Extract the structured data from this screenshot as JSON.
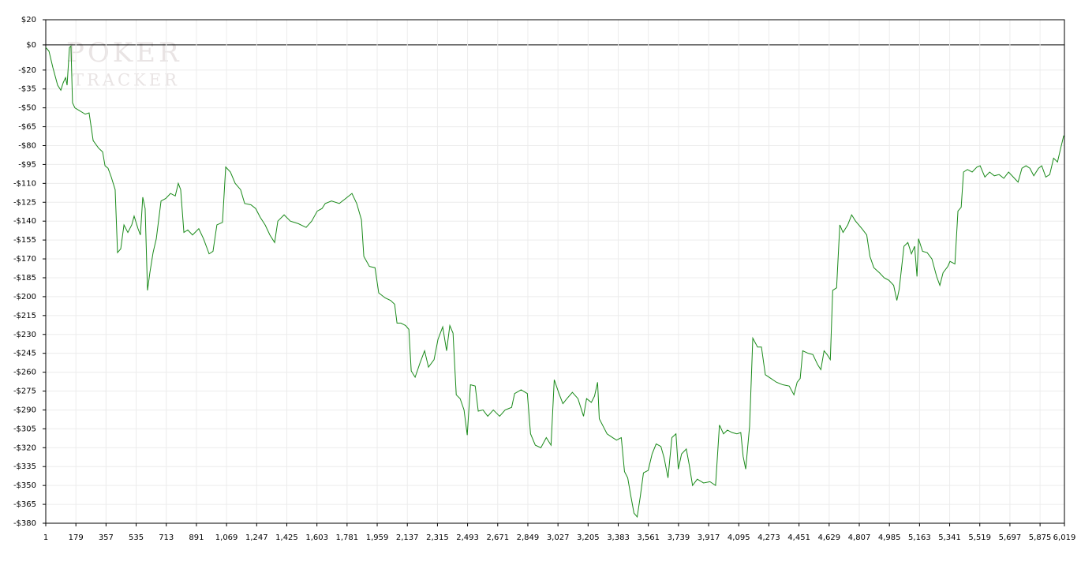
{
  "chart_data": {
    "type": "line",
    "watermark": [
      "POKER",
      "TRACKER"
    ],
    "color": "#1a8a1a",
    "grid": true,
    "xlim": [
      1,
      6019
    ],
    "ylim": [
      -380,
      20
    ],
    "xticks": [
      1,
      179,
      357,
      535,
      713,
      891,
      {
        "value": 1069,
        "label": "1,069"
      },
      {
        "value": 1247,
        "label": "1,247"
      },
      {
        "value": 1425,
        "label": "1,425"
      },
      {
        "value": 1603,
        "label": "1,603"
      },
      {
        "value": 1781,
        "label": "1,781"
      },
      {
        "value": 1959,
        "label": "1,959"
      },
      {
        "value": 2137,
        "label": "2,137"
      },
      {
        "value": 2315,
        "label": "2,315"
      },
      {
        "value": 2493,
        "label": "2,493"
      },
      {
        "value": 2671,
        "label": "2,671"
      },
      {
        "value": 2849,
        "label": "2,849"
      },
      {
        "value": 3027,
        "label": "3,027"
      },
      {
        "value": 3205,
        "label": "3,205"
      },
      {
        "value": 3383,
        "label": "3,383"
      },
      {
        "value": 3561,
        "label": "3,561"
      },
      {
        "value": 3739,
        "label": "3,739"
      },
      {
        "value": 3917,
        "label": "3,917"
      },
      {
        "value": 4095,
        "label": "4,095"
      },
      {
        "value": 4273,
        "label": "4,273"
      },
      {
        "value": 4451,
        "label": "4,451"
      },
      {
        "value": 4629,
        "label": "4,629"
      },
      {
        "value": 4807,
        "label": "4,807"
      },
      {
        "value": 4985,
        "label": "4,985"
      },
      {
        "value": 5163,
        "label": "5,163"
      },
      {
        "value": 5341,
        "label": "5,341"
      },
      {
        "value": 5519,
        "label": "5,519"
      },
      {
        "value": 5697,
        "label": "5,697"
      },
      {
        "value": 5875,
        "label": "5,875"
      },
      {
        "value": 6019,
        "label": "6,019"
      }
    ],
    "yticks": [
      {
        "value": 20,
        "label": "$20"
      },
      {
        "value": 0,
        "label": "$0"
      },
      {
        "value": -20,
        "label": "-$20"
      },
      {
        "value": -35,
        "label": "-$35"
      },
      {
        "value": -50,
        "label": "-$50"
      },
      {
        "value": -65,
        "label": "-$65"
      },
      {
        "value": -80,
        "label": "-$80"
      },
      {
        "value": -95,
        "label": "-$95"
      },
      {
        "value": -110,
        "label": "-$110"
      },
      {
        "value": -125,
        "label": "-$125"
      },
      {
        "value": -140,
        "label": "-$140"
      },
      {
        "value": -155,
        "label": "-$155"
      },
      {
        "value": -170,
        "label": "-$170"
      },
      {
        "value": -185,
        "label": "-$185"
      },
      {
        "value": -200,
        "label": "-$200"
      },
      {
        "value": -215,
        "label": "-$215"
      },
      {
        "value": -230,
        "label": "-$230"
      },
      {
        "value": -245,
        "label": "-$245"
      },
      {
        "value": -260,
        "label": "-$260"
      },
      {
        "value": -275,
        "label": "-$275"
      },
      {
        "value": -290,
        "label": "-$290"
      },
      {
        "value": -305,
        "label": "-$305"
      },
      {
        "value": -320,
        "label": "-$320"
      },
      {
        "value": -335,
        "label": "-$335"
      },
      {
        "value": -350,
        "label": "-$350"
      },
      {
        "value": -365,
        "label": "-$365"
      },
      {
        "value": -380,
        "label": "-$380"
      }
    ],
    "x": [
      1,
      20,
      43,
      71,
      90,
      104,
      118,
      127,
      141,
      150,
      159,
      173,
      197,
      234,
      257,
      281,
      313,
      337,
      351,
      369,
      388,
      411,
      425,
      444,
      463,
      486,
      509,
      523,
      546,
      560,
      574,
      588,
      602,
      616,
      635,
      654,
      682,
      710,
      738,
      766,
      784,
      798,
      817,
      840,
      868,
      905,
      933,
      966,
      989,
      1012,
      1045,
      1064,
      1092,
      1120,
      1152,
      1176,
      1213,
      1241,
      1268,
      1297,
      1325,
      1353,
      1372,
      1409,
      1446,
      1493,
      1539,
      1572,
      1605,
      1633,
      1652,
      1689,
      1735,
      1773,
      1810,
      1838,
      1866,
      1880,
      1913,
      1946,
      1968,
      2006,
      2038,
      2062,
      2076,
      2099,
      2127,
      2146,
      2160,
      2183,
      2211,
      2239,
      2262,
      2295,
      2318,
      2346,
      2369,
      2388,
      2407,
      2426,
      2449,
      2472,
      2491,
      2510,
      2538,
      2556,
      2584,
      2612,
      2645,
      2682,
      2715,
      2753,
      2771,
      2809,
      2846,
      2865,
      2893,
      2926,
      2958,
      2986,
      3005,
      3033,
      3056,
      3080,
      3112,
      3145,
      3178,
      3196,
      3224,
      3243,
      3261,
      3271,
      3294,
      3317,
      3350,
      3373,
      3401,
      3420,
      3439,
      3457,
      3476,
      3495,
      3513,
      3532,
      3560,
      3583,
      3607,
      3635,
      3654,
      3677,
      3700,
      3724,
      3738,
      3757,
      3785,
      3803,
      3822,
      3850,
      3887,
      3925,
      3958,
      3981,
      4005,
      4028,
      4056,
      4084,
      4107,
      4121,
      4136,
      4159,
      4178,
      4206,
      4229,
      4252,
      4285,
      4318,
      4355,
      4393,
      4421,
      4440,
      4458,
      4473,
      4505,
      4533,
      4561,
      4580,
      4599,
      4617,
      4636,
      4650,
      4673,
      4692,
      4711,
      4739,
      4762,
      4785,
      4823,
      4851,
      4870,
      4893,
      4926,
      4954,
      4982,
      5010,
      5029,
      5043,
      5057,
      5071,
      5094,
      5115,
      5134,
      5148,
      5157,
      5181,
      5208,
      5236,
      5264,
      5283,
      5302,
      5330,
      5343,
      5372,
      5390,
      5409,
      5423,
      5446,
      5474,
      5502,
      5521,
      5549,
      5577,
      5605,
      5633,
      5661,
      5689,
      5717,
      5745,
      5768,
      5792,
      5815,
      5838,
      5866,
      5885,
      5909,
      5932,
      5955,
      5978,
      5997,
      6015
    ],
    "values": [
      -2,
      -5,
      -18,
      -32,
      -36,
      -30,
      -26,
      -32,
      -2,
      -1,
      -46,
      -50,
      -52,
      -55,
      -54,
      -76,
      -82,
      -85,
      -96,
      -98,
      -105,
      -115,
      -165,
      -162,
      -143,
      -149,
      -143,
      -136,
      -146,
      -151,
      -121,
      -130,
      -195,
      -181,
      -165,
      -154,
      -124,
      -122,
      -118,
      -120,
      -110,
      -115,
      -149,
      -147,
      -151,
      -146,
      -154,
      -166,
      -164,
      -143,
      -141,
      -97,
      -101,
      -110,
      -115,
      -126,
      -127,
      -130,
      -137,
      -143,
      -151,
      -157,
      -140,
      -135,
      -140,
      -142,
      -145,
      -140,
      -132,
      -130,
      -126,
      -124,
      -126,
      -122,
      -118,
      -126,
      -139,
      -168,
      -176,
      -177,
      -197,
      -201,
      -203,
      -206,
      -221,
      -221,
      -223,
      -226,
      -259,
      -264,
      -253,
      -243,
      -256,
      -250,
      -234,
      -224,
      -243,
      -223,
      -229,
      -278,
      -281,
      -290,
      -310,
      -270,
      -271,
      -291,
      -290,
      -295,
      -290,
      -295,
      -290,
      -288,
      -277,
      -274,
      -277,
      -309,
      -318,
      -320,
      -312,
      -318,
      -266,
      -277,
      -285,
      -281,
      -276,
      -281,
      -295,
      -281,
      -284,
      -279,
      -268,
      -297,
      -303,
      -309,
      -312,
      -314,
      -312,
      -339,
      -344,
      -358,
      -372,
      -375,
      -359,
      -340,
      -338,
      -325,
      -317,
      -319,
      -328,
      -344,
      -312,
      -309,
      -337,
      -325,
      -321,
      -334,
      -350,
      -345,
      -348,
      -347,
      -350,
      -302,
      -309,
      -306,
      -308,
      -309,
      -308,
      -327,
      -337,
      -303,
      -233,
      -240,
      -240,
      -262,
      -265,
      -268,
      -270,
      -271,
      -278,
      -268,
      -265,
      -243,
      -245,
      -246,
      -254,
      -258,
      -243,
      -246,
      -250,
      -195,
      -193,
      -143,
      -149,
      -143,
      -135,
      -140,
      -146,
      -151,
      -168,
      -177,
      -181,
      -185,
      -187,
      -191,
      -203,
      -194,
      -177,
      -160,
      -157,
      -166,
      -160,
      -184,
      -154,
      -164,
      -165,
      -170,
      -184,
      -191,
      -181,
      -176,
      -172,
      -174,
      -132,
      -129,
      -101,
      -99,
      -101,
      -97,
      -96,
      -105,
      -101,
      -104,
      -103,
      -106,
      -101,
      -105,
      -109,
      -98,
      -96,
      -98,
      -104,
      -98,
      -96,
      -105,
      -103,
      -90,
      -93,
      -82,
      -72
    ]
  }
}
